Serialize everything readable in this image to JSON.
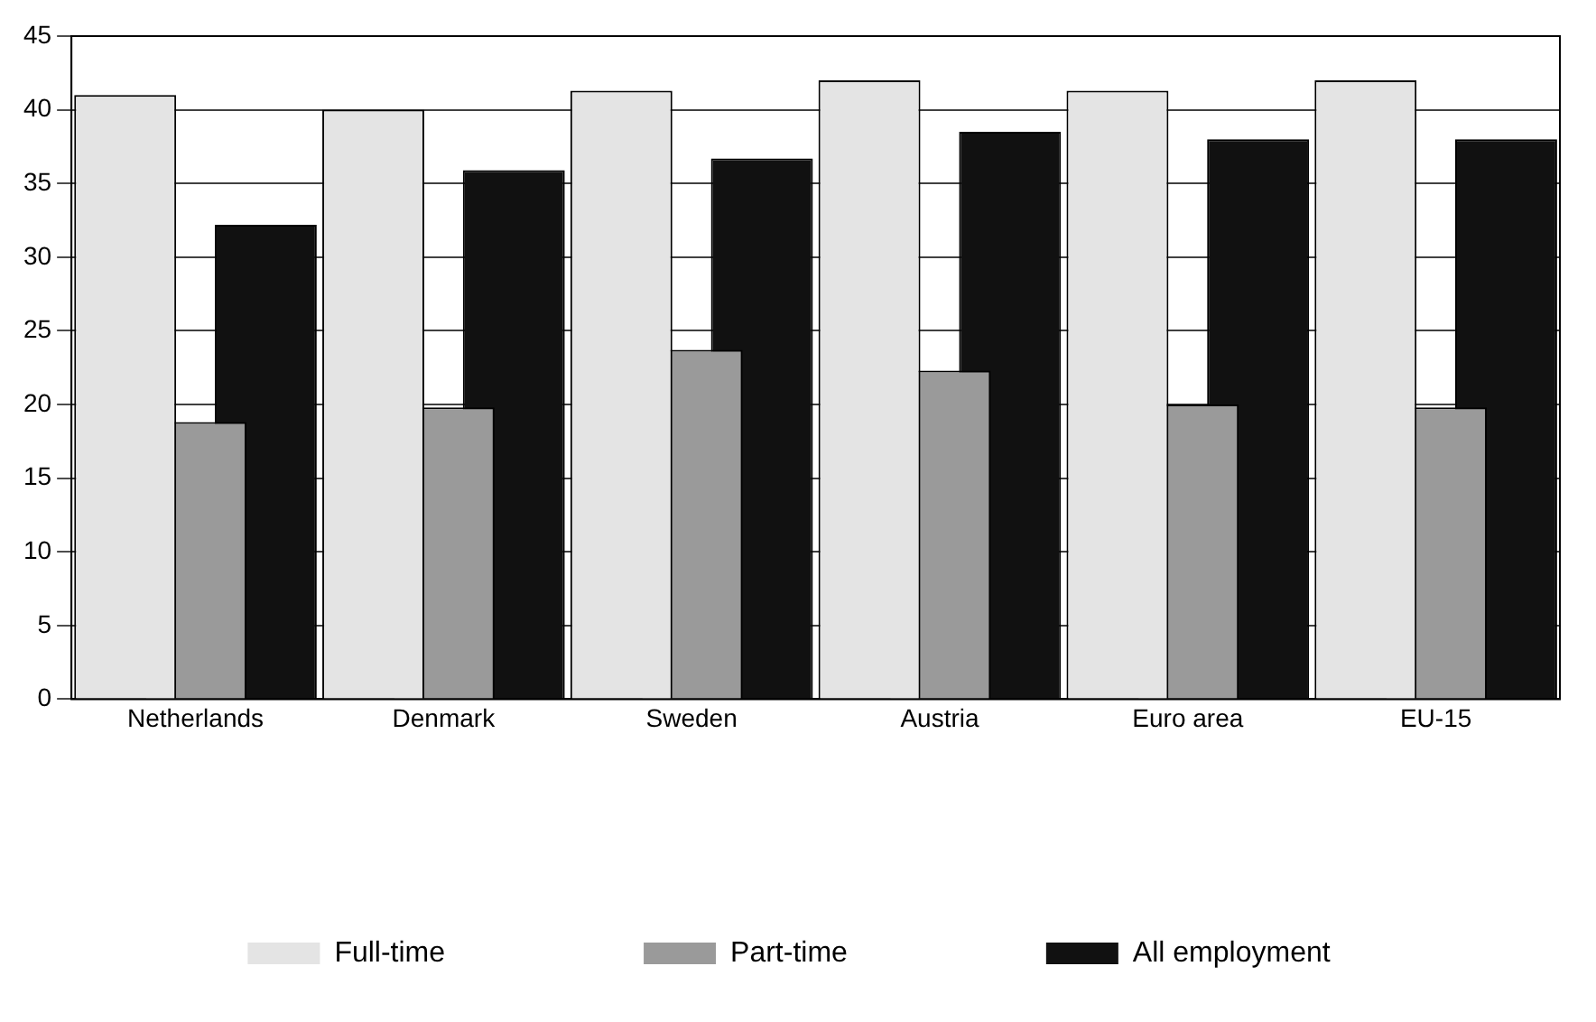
{
  "chart_data": {
    "type": "bar",
    "categories": [
      "Netherlands",
      "Denmark",
      "Sweden",
      "Austria",
      "Euro area",
      "EU-15"
    ],
    "series": [
      {
        "name": "Full-time",
        "color": "#e4e4e4",
        "values": [
          41,
          40,
          41.3,
          42,
          41.3,
          42
        ]
      },
      {
        "name": "Part-time",
        "color": "#9a9a9a",
        "values": [
          18.8,
          19.8,
          23.7,
          22.3,
          20,
          19.8
        ]
      },
      {
        "name": "All employment",
        "color": "#111111",
        "values": [
          32.2,
          35.9,
          36.7,
          38.5,
          38,
          38
        ]
      }
    ],
    "ylim": [
      0,
      45
    ],
    "yticks": [
      0,
      5,
      10,
      15,
      20,
      25,
      30,
      35,
      40,
      45
    ],
    "grid": "y",
    "legend": "bottom"
  }
}
